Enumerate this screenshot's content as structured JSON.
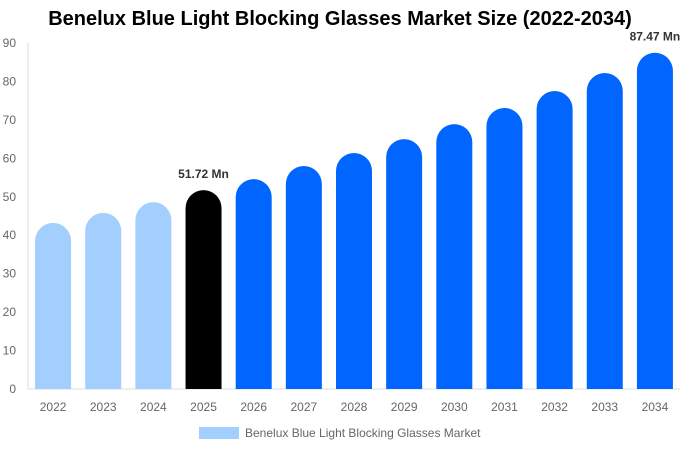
{
  "chart_data": {
    "type": "bar",
    "title": "Benelux Blue Light Blocking Glasses Market Size (2022-2034)",
    "xlabel": "",
    "ylabel": "",
    "ylim": [
      0,
      90
    ],
    "yticks": [
      0,
      10,
      20,
      30,
      40,
      50,
      60,
      70,
      80,
      90
    ],
    "grid": false,
    "legend_position": "bottom",
    "categories": [
      "2022",
      "2023",
      "2024",
      "2025",
      "2026",
      "2027",
      "2028",
      "2029",
      "2030",
      "2031",
      "2032",
      "2033",
      "2034"
    ],
    "series": [
      {
        "name": "Benelux Blue Light Blocking Glasses Market",
        "values": [
          43.2,
          45.8,
          48.6,
          51.72,
          54.6,
          58.0,
          61.4,
          65.0,
          68.9,
          73.1,
          77.5,
          82.2,
          87.47
        ]
      }
    ],
    "data_labels": {
      "2025": "51.72 Mn",
      "2034": "87.47 Mn"
    },
    "colors": {
      "historical": "#a3cfff",
      "current": "#000000",
      "forecast": "#0066ff"
    },
    "color_by_category": [
      "historical",
      "historical",
      "historical",
      "current",
      "forecast",
      "forecast",
      "forecast",
      "forecast",
      "forecast",
      "forecast",
      "forecast",
      "forecast",
      "forecast"
    ]
  }
}
